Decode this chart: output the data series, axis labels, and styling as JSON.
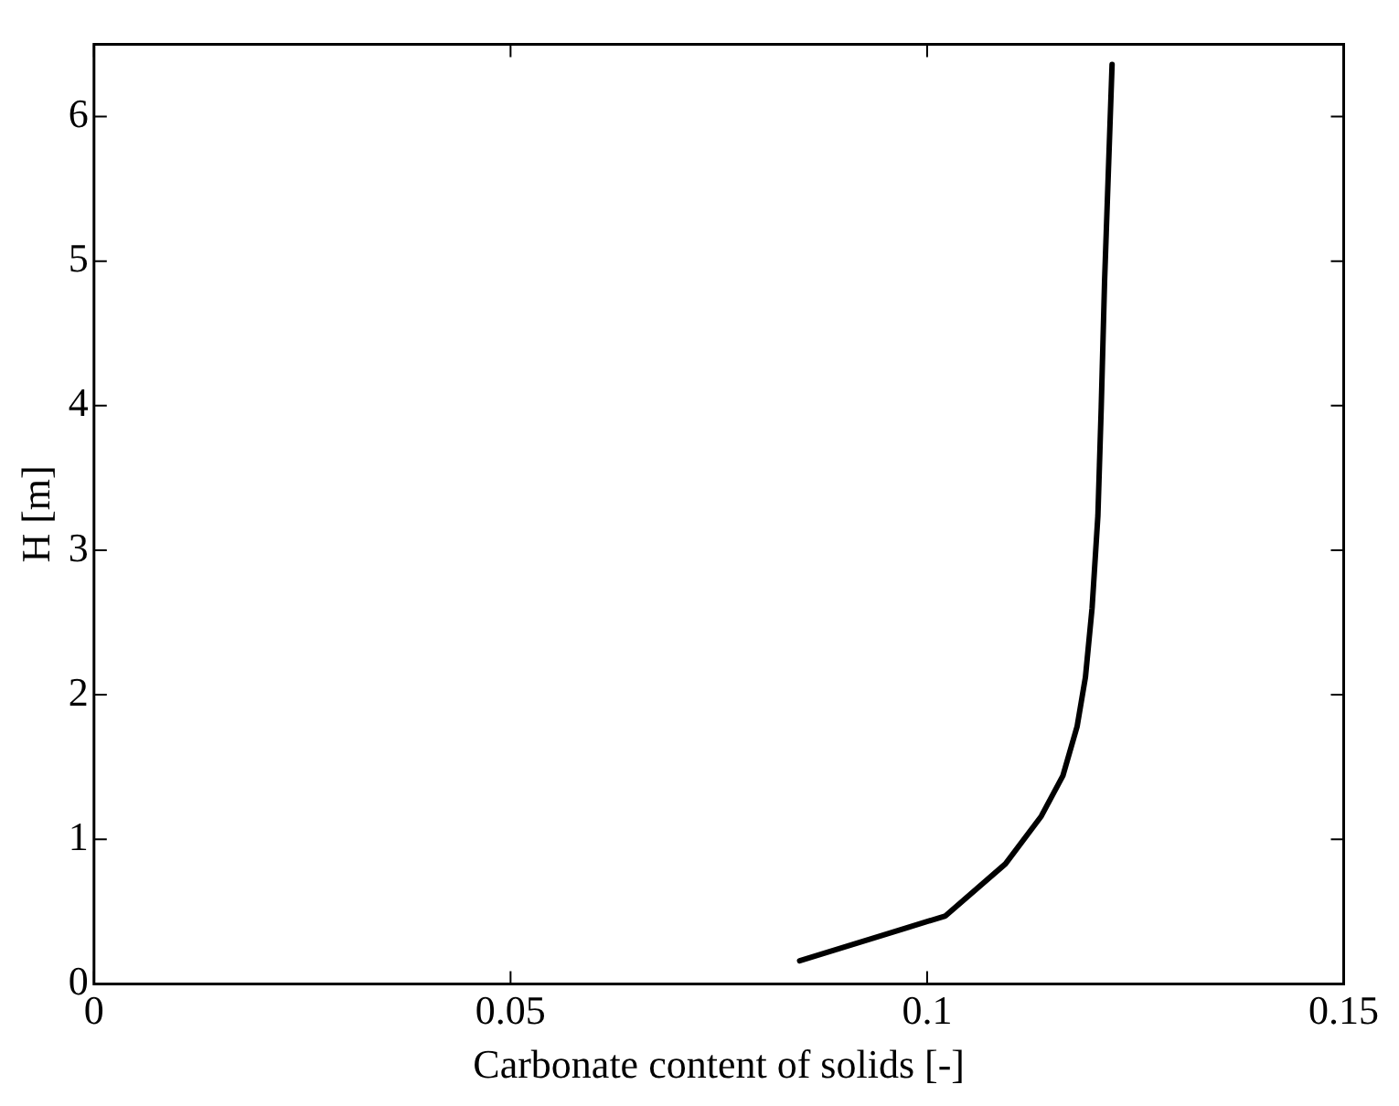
{
  "chart_data": {
    "type": "line",
    "xlabel": "Carbonate content of solids [-]",
    "ylabel": "H [m]",
    "series": [
      {
        "color": "#000000",
        "x": [
          0.0847,
          0.1022,
          0.1094,
          0.1137,
          0.1163,
          0.118,
          0.119,
          0.1198,
          0.1205,
          0.1209,
          0.1213,
          0.1222
        ],
        "values": [
          0.16,
          0.47,
          0.83,
          1.16,
          1.44,
          1.78,
          2.12,
          2.6,
          3.24,
          3.99,
          4.86,
          6.36
        ]
      }
    ],
    "xlim": [
      0,
      0.15
    ],
    "xticks": [
      0,
      0.05,
      0.1,
      0.15
    ],
    "ylim": [
      0,
      6.5
    ],
    "yticks": [
      0,
      1,
      2,
      3,
      4,
      5,
      6
    ],
    "grid": false,
    "legend": false,
    "marker": "none",
    "line_style": "solid"
  }
}
